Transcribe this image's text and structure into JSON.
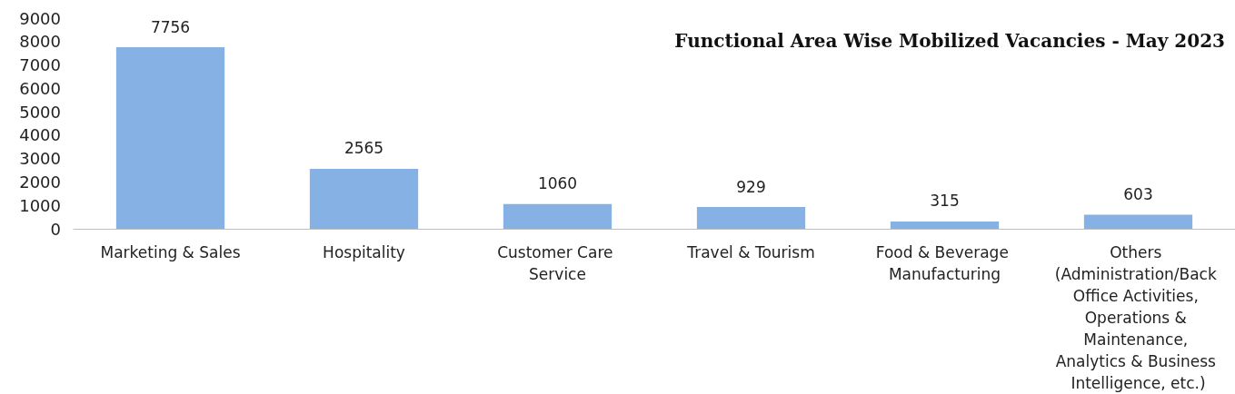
{
  "chart_data": {
    "type": "bar",
    "title": "Functional Area Wise Mobilized Vacancies - May 2023",
    "categories": [
      "Marketing & Sales",
      "Hospitality",
      "Customer Care Service",
      "Travel & Tourism",
      "Food & Beverage Manufacturing",
      "Others (Administration/Back Office Activities, Operations & Maintenance, Analytics & Business Intelligence, etc.)"
    ],
    "values": [
      7756,
      2565,
      1060,
      929,
      315,
      603
    ],
    "color": "#85b1e5",
    "ylim": [
      0,
      9000
    ],
    "yticks": [
      0,
      1000,
      2000,
      3000,
      4000,
      5000,
      6000,
      7000,
      8000,
      9000
    ],
    "data_labels": true,
    "grid": false
  }
}
